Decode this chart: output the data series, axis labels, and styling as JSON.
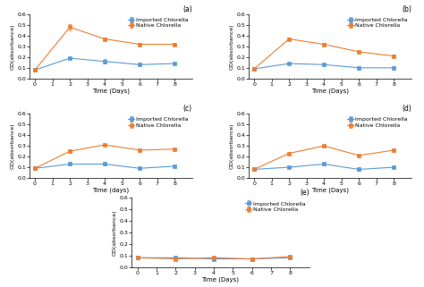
{
  "time": [
    0,
    2,
    4,
    6,
    8
  ],
  "subplots": [
    {
      "label": "(a)",
      "imported": [
        0.08,
        0.19,
        0.16,
        0.13,
        0.14
      ],
      "native": [
        0.08,
        0.48,
        0.37,
        0.32,
        0.32
      ],
      "imported_err": [
        0.0,
        0.01,
        0.02,
        0.01,
        0.01
      ],
      "native_err": [
        0.0,
        0.03,
        0.01,
        0.01,
        0.01
      ],
      "xlabel": "Time (Days)",
      "ylim": [
        0,
        0.6
      ]
    },
    {
      "label": "(b)",
      "imported": [
        0.09,
        0.14,
        0.13,
        0.1,
        0.1
      ],
      "native": [
        0.09,
        0.37,
        0.32,
        0.25,
        0.21
      ],
      "imported_err": [
        0.0,
        0.01,
        0.01,
        0.01,
        0.01
      ],
      "native_err": [
        0.0,
        0.01,
        0.01,
        0.01,
        0.01
      ],
      "xlabel": "Time (Days)",
      "ylim": [
        0,
        0.6
      ]
    },
    {
      "label": "(c)",
      "imported": [
        0.09,
        0.13,
        0.13,
        0.09,
        0.11
      ],
      "native": [
        0.09,
        0.25,
        0.31,
        0.26,
        0.27
      ],
      "imported_err": [
        0.0,
        0.01,
        0.01,
        0.01,
        0.01
      ],
      "native_err": [
        0.0,
        0.01,
        0.01,
        0.01,
        0.01
      ],
      "xlabel": "Time (days)",
      "ylim": [
        0,
        0.6
      ]
    },
    {
      "label": "(d)",
      "imported": [
        0.08,
        0.1,
        0.13,
        0.08,
        0.1
      ],
      "native": [
        0.08,
        0.23,
        0.3,
        0.21,
        0.26
      ],
      "imported_err": [
        0.0,
        0.01,
        0.01,
        0.01,
        0.01
      ],
      "native_err": [
        0.0,
        0.01,
        0.01,
        0.01,
        0.01
      ],
      "xlabel": "Time (Days)",
      "ylim": [
        0,
        0.6
      ]
    },
    {
      "label": "(e)",
      "imported": [
        0.08,
        0.08,
        0.07,
        0.07,
        0.08
      ],
      "native": [
        0.08,
        0.07,
        0.08,
        0.07,
        0.09
      ],
      "imported_err": [
        0.0,
        0.005,
        0.005,
        0.005,
        0.005
      ],
      "native_err": [
        0.0,
        0.005,
        0.005,
        0.005,
        0.005
      ],
      "xlabel": "Time (Days)",
      "ylim": [
        0,
        0.6
      ]
    }
  ],
  "ylabel": "OD(absorbance)",
  "imported_color": "#5b9bd5",
  "native_color": "#ed7d31",
  "marker": "s",
  "linewidth": 0.8,
  "markersize": 2.5,
  "legend_imported": "Imported Chlorella",
  "legend_native": "Native Chlorella",
  "tick_fontsize": 4.5,
  "label_fontsize": 5,
  "legend_fontsize": 4.5,
  "background_color": "#ffffff"
}
